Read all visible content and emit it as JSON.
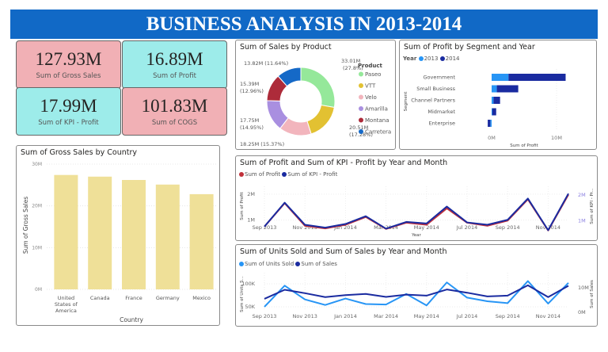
{
  "header": {
    "title": "BUSINESS ANALYSIS IN 2013-2014"
  },
  "kpis": [
    {
      "value": "127.93M",
      "label": "Sum of Gross Sales",
      "color": "#f1b0b5"
    },
    {
      "value": "16.89M",
      "label": "Sum of Profit",
      "color": "#9decea"
    },
    {
      "value": "17.99M",
      "label": "Sum of KPI - Profit",
      "color": "#9decea"
    },
    {
      "value": "101.83M",
      "label": "Sum of COGS",
      "color": "#f1b0b5"
    }
  ],
  "chart_data": [
    {
      "type": "pie",
      "title": "Sum of Sales by Product",
      "legend_title": "Product",
      "legend_position": "right",
      "categories": [
        "Paseo",
        "VTT",
        "Velo",
        "Amarilla",
        "Montana",
        "Carretera"
      ],
      "values": [
        33.01,
        20.51,
        18.25,
        17.75,
        15.39,
        13.82
      ],
      "labels": [
        "33.01M (27.8%)",
        "20.51M (17.28%)",
        "18.25M (15.37%)",
        "17.75M (14.95%)",
        "15.39M (12.96%)",
        "13.82M (11.64%)"
      ],
      "colors": [
        "#95e89a",
        "#e2c132",
        "#f2b5bd",
        "#a98fe0",
        "#ad2b3a",
        "#1569c7"
      ],
      "unit": "M"
    },
    {
      "type": "bar",
      "orientation": "horizontal",
      "stacked": true,
      "title": "Sum of Profit by Segment and Year",
      "legend_title": "Year",
      "legend_position": "top-left",
      "categories": [
        "Government",
        "Small Business",
        "Channel Partners",
        "Midmarket",
        "Enterprise"
      ],
      "series": [
        {
          "name": "2013",
          "color": "#2795f5",
          "values": [
            2.6,
            0.8,
            0.3,
            0.1,
            -0.2
          ]
        },
        {
          "name": "2014",
          "color": "#1a2ba0",
          "values": [
            8.8,
            3.3,
            1.0,
            0.6,
            -0.4
          ]
        }
      ],
      "xlabel": "Sum of Profit",
      "ylabel": "Segment",
      "xticks": [
        "0M",
        "10M"
      ],
      "xlim": [
        -1,
        13
      ],
      "unit": "M"
    },
    {
      "type": "bar",
      "title": "Sum of Gross Sales by Country",
      "categories": [
        "United States of America",
        "Canada",
        "France",
        "Germany",
        "Mexico"
      ],
      "values": [
        27.4,
        27.0,
        26.2,
        25.1,
        22.8
      ],
      "color": "#efe098",
      "xlabel": "Country",
      "ylabel": "Sum of Gross Sales",
      "yticks": [
        "0M",
        "10M",
        "20M",
        "30M"
      ],
      "ylim": [
        0,
        30
      ],
      "grid": true,
      "unit": "M"
    },
    {
      "type": "line",
      "title": "Sum of Profit and Sum of KPI - Profit by Year and Month",
      "legend_position": "top-left",
      "x": [
        "Sep 2013",
        "Oct 2013",
        "Nov 2013",
        "Dec 2013",
        "Jan 2014",
        "Feb 2014",
        "Mar 2014",
        "Apr 2014",
        "May 2014",
        "Jun 2014",
        "Jul 2014",
        "Aug 2014",
        "Sep 2014",
        "Oct 2014",
        "Nov 2014",
        "Dec 2014"
      ],
      "xticks": [
        "Sep 2013",
        "Nov 2013",
        "Jan 2014",
        "Mar 2014",
        "May 2014",
        "Jul 2014",
        "Sep 2014",
        "Nov 2014"
      ],
      "series": [
        {
          "name": "Sum of Profit",
          "color": "#c0303a",
          "axis": "left",
          "values": [
            0.75,
            1.65,
            0.78,
            0.68,
            0.82,
            1.12,
            0.66,
            0.9,
            0.82,
            1.45,
            0.9,
            0.78,
            0.98,
            1.8,
            0.6,
            1.98
          ]
        },
        {
          "name": "Sum of KPI - Profit",
          "color": "#1a2ba0",
          "axis": "right",
          "values": [
            0.78,
            1.7,
            0.85,
            0.74,
            0.88,
            1.18,
            0.7,
            0.96,
            0.9,
            1.55,
            0.94,
            0.85,
            1.04,
            1.86,
            0.64,
            2.05
          ]
        }
      ],
      "xlabel": "Year",
      "ylabel": "Sum of Profit",
      "y2label": "Sum of KPI - Pr...",
      "yticks": [
        "1M",
        "2M"
      ],
      "y2ticks": [
        "1M",
        "2M"
      ],
      "ylim": [
        0.5,
        2.3
      ],
      "unit": "M"
    },
    {
      "type": "line",
      "title": "Sum of Units Sold and Sum of Sales by Year and Month",
      "legend_position": "top-left",
      "x": [
        "Sep 2013",
        "Oct 2013",
        "Nov 2013",
        "Dec 2013",
        "Jan 2014",
        "Feb 2014",
        "Mar 2014",
        "Apr 2014",
        "May 2014",
        "Jun 2014",
        "Jul 2014",
        "Aug 2014",
        "Sep 2014",
        "Oct 2014",
        "Nov 2014",
        "Dec 2014"
      ],
      "xticks": [
        "Sep 2013",
        "Nov 2013",
        "Jan 2014",
        "Mar 2014",
        "May 2014",
        "Jul 2014",
        "Sep 2014",
        "Nov 2014"
      ],
      "series": [
        {
          "name": "Sum of Units Sold",
          "color": "#2795f5",
          "axis": "left",
          "values": [
            50000,
            96000,
            66000,
            54000,
            68000,
            56000,
            55000,
            78000,
            53000,
            103000,
            70000,
            62000,
            58000,
            106000,
            57000,
            102000
          ],
          "ylim": [
            40000,
            120000
          ]
        },
        {
          "name": "Sum of  Sales",
          "color": "#1a2ba0",
          "axis": "right",
          "values": [
            5.5,
            9.2,
            7.8,
            6.2,
            7.0,
            7.5,
            6.3,
            7.2,
            6.8,
            9.3,
            8.0,
            6.5,
            6.8,
            11.0,
            6.2,
            10.8
          ],
          "ylim": [
            0,
            15
          ]
        }
      ],
      "ylabel": "Sum of Units S...",
      "y2label": "Sum of Sales",
      "yticks": [
        "50K",
        "100K"
      ],
      "y2ticks": [
        "0M",
        "10M"
      ]
    }
  ]
}
